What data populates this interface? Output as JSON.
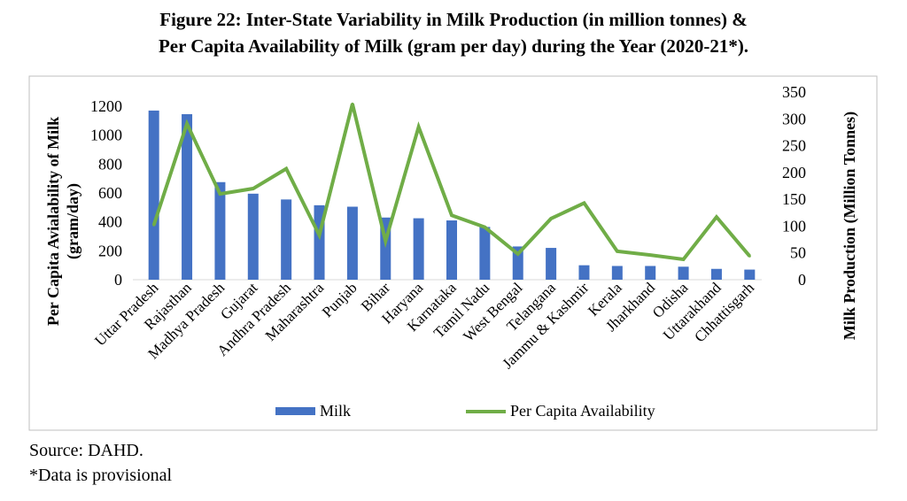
{
  "chart_data": {
    "type": "bar+line",
    "title_line1": "Figure 22: Inter-State Variability in Milk Production (in million tonnes) &",
    "title_line2": "Per Capita Availability of Milk (gram per day) during the Year (2020-21*).",
    "categories": [
      "Uttar Pradesh",
      "Rajasthan",
      "Madhya Pradesh",
      "Gujarat",
      "Andhra Pradesh",
      "Maharashtra",
      "Punjab",
      "Bihar",
      "Haryana",
      "Karnataka",
      "Tamil Nadu",
      "West Bengal",
      "Telangana",
      "Jammu & Kashmir",
      "Kerala",
      "Jharkhand",
      "Odisha",
      "Uttarakhand",
      "Chhattisgarh"
    ],
    "series": [
      {
        "name": "Milk",
        "type": "bar",
        "axis": "left",
        "color": "#4472C4",
        "values": [
          1170,
          1145,
          675,
          595,
          555,
          515,
          505,
          430,
          425,
          410,
          365,
          230,
          220,
          100,
          95,
          95,
          90,
          75,
          70
        ]
      },
      {
        "name": "Per Capita Availability",
        "type": "line",
        "axis": "right",
        "color": "#70AD47",
        "values": [
          102,
          291,
          160,
          170,
          207,
          83,
          328,
          72,
          285,
          120,
          98,
          48,
          114,
          143,
          53,
          46,
          38,
          117,
          44
        ]
      }
    ],
    "y_left": {
      "label_line1": "Per Capita Avialability of Milk",
      "label_line2": "(gram/day)",
      "min": 0,
      "max": 1200,
      "ticks": [
        0,
        200,
        400,
        600,
        800,
        1000,
        1200
      ]
    },
    "y_right": {
      "label": "Milk Production (Million Tonnes)",
      "min": 0,
      "max": 350,
      "ticks": [
        0,
        50,
        100,
        150,
        200,
        250,
        300,
        350
      ]
    },
    "legend_position": "bottom",
    "grid": false
  },
  "source": "Source: DAHD.",
  "note": "*Data is provisional"
}
